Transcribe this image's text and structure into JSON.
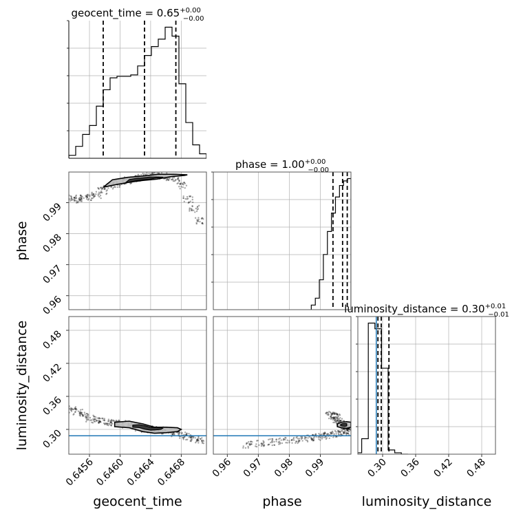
{
  "chart_data": {
    "type": "corner",
    "parameters": [
      "geocent_time",
      "phase",
      "luminosity_distance"
    ],
    "colors": {
      "truth": "#1f77b4",
      "contour": "#000000",
      "grid": "#b0b0b0",
      "points": "#000000"
    },
    "titles": [
      {
        "name": "geocent_time",
        "value": "0.65",
        "plus": "+0.00",
        "minus": "−0.00"
      },
      {
        "name": "phase",
        "value": "1.00",
        "plus": "+0.00",
        "minus": "−0.00"
      },
      {
        "name": "luminosity_distance",
        "value": "0.30",
        "plus": "+0.01",
        "minus": "−0.01"
      }
    ],
    "axis_labels": {
      "x": [
        "geocent_time",
        "phase",
        "luminosity_distance"
      ],
      "y": [
        "phase",
        "luminosity_distance"
      ]
    },
    "ranges": {
      "geocent_time": [
        0.64533,
        0.64713
      ],
      "phase": [
        0.9555,
        0.9999
      ],
      "luminosity_distance": [
        0.255,
        0.505
      ]
    },
    "ticks": {
      "geocent_time": {
        "values": [
          0.6456,
          0.646,
          0.6464,
          0.6468
        ],
        "labels": [
          "0.6456",
          "0.6460",
          "0.6464",
          "0.6468"
        ]
      },
      "phase": {
        "values": [
          0.96,
          0.97,
          0.98,
          0.99
        ],
        "labels": [
          "0.96",
          "0.97",
          "0.98",
          "0.99"
        ]
      },
      "luminosity_distance": {
        "values": [
          0.3,
          0.36,
          0.42,
          0.48
        ],
        "labels": [
          "0.30",
          "0.36",
          "0.42",
          "0.48"
        ]
      }
    },
    "truth": {
      "luminosity_distance": 0.2885
    },
    "histograms": {
      "geocent_time": {
        "edges": [
          0.64533,
          0.64542,
          0.64551,
          0.6456,
          0.64569,
          0.64578,
          0.64587,
          0.64596,
          0.64605,
          0.64614,
          0.64623,
          0.64632,
          0.64641,
          0.6465,
          0.64659,
          0.64668,
          0.64677,
          0.64686,
          0.64695,
          0.64704,
          0.64713
        ],
        "counts": [
          2,
          8,
          16,
          22,
          35,
          46,
          54,
          55,
          55,
          56,
          62,
          69,
          75,
          80,
          88,
          82,
          50,
          24,
          9,
          3
        ],
        "quantiles": [
          0.64578,
          0.64632,
          0.64673
        ]
      },
      "phase": {
        "edges": [
          0.9871,
          0.9884,
          0.9897,
          0.991,
          0.9923,
          0.9936,
          0.9949,
          0.9962,
          0.9975,
          0.9988,
          0.9999
        ],
        "counts": [
          2,
          5,
          13,
          24,
          34,
          42,
          49,
          54,
          56,
          57
        ],
        "quantiles": [
          0.9941,
          0.9972,
          0.9987
        ]
      },
      "luminosity_distance": {
        "edges": [
          0.25,
          0.262,
          0.274,
          0.286,
          0.298,
          0.31,
          0.322,
          0.334,
          0.346
        ],
        "counts": [
          1,
          11,
          93,
          89,
          61,
          3,
          1,
          0
        ],
        "quantiles": [
          0.2915,
          0.2975,
          0.3115
        ]
      }
    },
    "samples": {
      "time_phase": {
        "x": [
          0.64537,
          0.64545,
          0.64553,
          0.64561,
          0.64569,
          0.64577,
          0.64585,
          0.64593,
          0.64601,
          0.64609,
          0.64617,
          0.64625,
          0.64633,
          0.64641,
          0.64649,
          0.64657,
          0.64665,
          0.64673,
          0.64681,
          0.64689,
          0.64697,
          0.64705
        ],
        "y": [
          0.9916,
          0.991,
          0.9914,
          0.9918,
          0.9925,
          0.9938,
          0.9952,
          0.996,
          0.9966,
          0.9972,
          0.9976,
          0.998,
          0.9985,
          0.9988,
          0.9986,
          0.9985,
          0.9982,
          0.9978,
          0.9955,
          0.991,
          0.988,
          0.9842
        ]
      },
      "time_dist": {
        "x": [
          0.64537,
          0.64545,
          0.64553,
          0.64561,
          0.64569,
          0.64577,
          0.64585,
          0.64593,
          0.64601,
          0.64609,
          0.64617,
          0.64625,
          0.64633,
          0.64641,
          0.64649,
          0.64657,
          0.64665,
          0.64673,
          0.64681,
          0.64689,
          0.64697,
          0.64705
        ],
        "y": [
          0.336,
          0.331,
          0.325,
          0.32,
          0.317,
          0.314,
          0.312,
          0.311,
          0.31,
          0.309,
          0.307,
          0.303,
          0.301,
          0.3,
          0.299,
          0.298,
          0.296,
          0.293,
          0.29,
          0.287,
          0.284,
          0.28
        ]
      },
      "phase_dist": {
        "x": [
          0.9665,
          0.9705,
          0.9745,
          0.978,
          0.9815,
          0.9845,
          0.987,
          0.989,
          0.991,
          0.993,
          0.995,
          0.9965,
          0.9978,
          0.999,
          0.9932,
          0.994,
          0.9948,
          0.9955,
          0.9962,
          0.997,
          0.998,
          0.999
        ],
        "y": [
          0.272,
          0.274,
          0.277,
          0.279,
          0.281,
          0.283,
          0.285,
          0.286,
          0.287,
          0.289,
          0.291,
          0.294,
          0.296,
          0.298,
          0.328,
          0.326,
          0.322,
          0.318,
          0.314,
          0.31,
          0.306,
          0.303
        ]
      }
    },
    "contours": {
      "time_phase": {
        "x": [
          0.64578,
          0.64594,
          0.64612,
          0.6463,
          0.64648,
          0.64666,
          0.64684,
          0.64688,
          0.6467,
          0.6465,
          0.6463,
          0.6461,
          0.6459,
          0.64578
        ],
        "y": [
          0.995,
          0.9958,
          0.9966,
          0.9972,
          0.9976,
          0.9984,
          0.9988,
          0.999,
          0.9992,
          0.9992,
          0.9986,
          0.9982,
          0.9974,
          0.995
        ]
      },
      "time_dist": {
        "x": [
          0.64593,
          0.64612,
          0.6463,
          0.64645,
          0.6466,
          0.64675,
          0.6468,
          0.64675,
          0.6466,
          0.64645,
          0.6463,
          0.64612,
          0.64593,
          0.64593
        ],
        "y": [
          0.313,
          0.315,
          0.31,
          0.304,
          0.304,
          0.303,
          0.3,
          0.296,
          0.294,
          0.293,
          0.296,
          0.303,
          0.305,
          0.313
        ]
      },
      "phase_dist": {
        "x": [
          0.9955,
          0.9968,
          0.9985,
          0.9999,
          0.9999,
          0.9985,
          0.9968,
          0.9955,
          0.9955
        ],
        "y": [
          0.31,
          0.313,
          0.314,
          0.313,
          0.304,
          0.302,
          0.303,
          0.305,
          0.31
        ]
      }
    }
  }
}
